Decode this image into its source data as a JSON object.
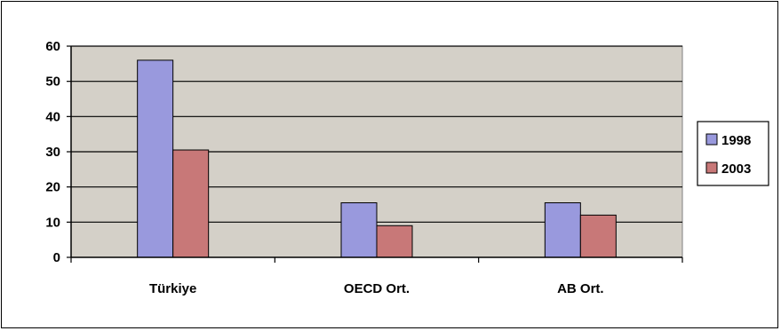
{
  "chart_data": {
    "type": "bar",
    "categories": [
      "Türkiye",
      "OECD Ort.",
      "AB Ort."
    ],
    "series": [
      {
        "name": "1998",
        "values": [
          56,
          15.5,
          15.5
        ],
        "color": "#9999dd"
      },
      {
        "name": "2003",
        "values": [
          30.5,
          9,
          12
        ],
        "color": "#c87878"
      }
    ],
    "ylim": [
      0,
      60
    ],
    "yticks": [
      0,
      10,
      20,
      30,
      40,
      50,
      60
    ],
    "grid": true,
    "plot_background": "#d4d0c8",
    "legend_position": "right"
  }
}
